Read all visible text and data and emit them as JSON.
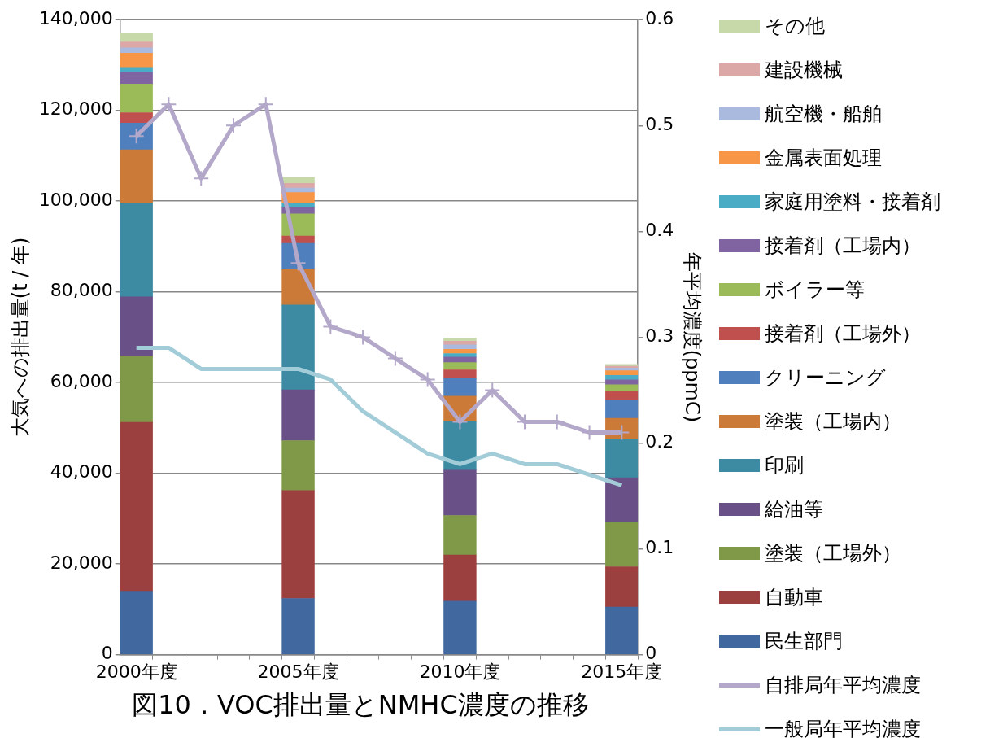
{
  "chart_data": {
    "type": "bar",
    "title": "図10．VOC排出量とNMHC濃度の推移",
    "ylabel": "大気への排出量(t / 年)",
    "y2label": "年平均濃度(ppmC)",
    "categories": [
      "2000年度",
      null,
      null,
      null,
      null,
      "2005年度",
      null,
      null,
      null,
      null,
      "2010年度",
      null,
      null,
      null,
      null,
      "2015年度"
    ],
    "stacked": true,
    "grid": "y",
    "legend": "right",
    "ylim": [
      0,
      140000
    ],
    "yticks": [
      0,
      {
        "value": 20000,
        "label": "20,000"
      },
      {
        "value": 40000,
        "label": "40,000"
      },
      {
        "value": 60000,
        "label": "60,000"
      },
      {
        "value": 80000,
        "label": "80,000"
      },
      {
        "value": 100000,
        "label": "100,000"
      },
      {
        "value": 120000,
        "label": "120,000"
      },
      {
        "value": 140000,
        "label": "140,000"
      }
    ],
    "y2lim": [
      0,
      0.6
    ],
    "y2ticks": [
      0,
      0.1,
      0.2,
      0.3,
      0.4,
      0.5,
      0.6
    ],
    "series": [
      {
        "name": "民生部門",
        "color": "#41699f",
        "values": [
          14000,
          null,
          null,
          null,
          null,
          12400,
          null,
          null,
          null,
          null,
          11800,
          null,
          null,
          null,
          null,
          10500
        ]
      },
      {
        "name": "自動車",
        "color": "#9c403f",
        "values": [
          37200,
          null,
          null,
          null,
          null,
          23800,
          null,
          null,
          null,
          null,
          10200,
          null,
          null,
          null,
          null,
          8900
        ]
      },
      {
        "name": "塗装（工場外）",
        "color": "#7f9948",
        "values": [
          14500,
          null,
          null,
          null,
          null,
          11000,
          null,
          null,
          null,
          null,
          8700,
          null,
          null,
          null,
          null,
          9900
        ]
      },
      {
        "name": "給油等",
        "color": "#695087",
        "values": [
          13200,
          null,
          null,
          null,
          null,
          11200,
          null,
          null,
          null,
          null,
          10000,
          null,
          null,
          null,
          null,
          9700
        ]
      },
      {
        "name": "印刷",
        "color": "#3c8ba3",
        "values": [
          20700,
          null,
          null,
          null,
          null,
          18700,
          null,
          null,
          null,
          null,
          10700,
          null,
          null,
          null,
          null,
          8600
        ]
      },
      {
        "name": "塗装（工場内）",
        "color": "#cc7a37",
        "values": [
          11700,
          null,
          null,
          null,
          null,
          7800,
          null,
          null,
          null,
          null,
          5600,
          null,
          null,
          null,
          null,
          4500
        ]
      },
      {
        "name": "クリーニング",
        "color": "#4f80bd",
        "values": [
          5900,
          null,
          null,
          null,
          null,
          5800,
          null,
          null,
          null,
          null,
          3900,
          null,
          null,
          null,
          null,
          4000
        ]
      },
      {
        "name": "接着剤（工場外）",
        "color": "#c0504d",
        "values": [
          2300,
          null,
          null,
          null,
          null,
          1600,
          null,
          null,
          null,
          null,
          1900,
          null,
          null,
          null,
          null,
          2000
        ]
      },
      {
        "name": "ボイラー等",
        "color": "#9bbb59",
        "values": [
          6300,
          null,
          null,
          null,
          null,
          4900,
          null,
          null,
          null,
          null,
          1600,
          null,
          null,
          null,
          null,
          1400
        ]
      },
      {
        "name": "接着剤（工場内）",
        "color": "#8064a2",
        "values": [
          2500,
          null,
          null,
          null,
          null,
          1500,
          null,
          null,
          null,
          null,
          1200,
          null,
          null,
          null,
          null,
          1100
        ]
      },
      {
        "name": "家庭用塗料・接着剤",
        "color": "#4bacc6",
        "values": [
          1200,
          null,
          null,
          null,
          null,
          900,
          null,
          null,
          null,
          null,
          800,
          null,
          null,
          null,
          null,
          1000
        ]
      },
      {
        "name": "金属表面処理",
        "color": "#f79646",
        "values": [
          3100,
          null,
          null,
          null,
          null,
          2300,
          null,
          null,
          null,
          null,
          900,
          null,
          null,
          null,
          null,
          1000
        ]
      },
      {
        "name": "航空機・船舶",
        "color": "#aabade",
        "values": [
          1200,
          null,
          null,
          null,
          null,
          1000,
          null,
          null,
          null,
          null,
          1000,
          null,
          null,
          null,
          null,
          600
        ]
      },
      {
        "name": "建設機械",
        "color": "#dba8a7",
        "values": [
          1300,
          null,
          null,
          null,
          null,
          1000,
          null,
          null,
          null,
          null,
          800,
          null,
          null,
          null,
          null,
          400
        ]
      },
      {
        "name": "その他",
        "color": "#c7d8a9",
        "values": [
          2000,
          null,
          null,
          null,
          null,
          1300,
          null,
          null,
          null,
          null,
          700,
          null,
          null,
          null,
          null,
          400
        ]
      },
      {
        "name": "自排局年平均濃度",
        "type": "line",
        "axis": "y2",
        "marker": "cross",
        "color": "#b3a8c9",
        "values": [
          0.49,
          0.52,
          0.45,
          0.5,
          0.52,
          0.37,
          0.31,
          0.3,
          0.28,
          0.26,
          0.22,
          0.25,
          0.22,
          0.22,
          0.21,
          0.21
        ]
      },
      {
        "name": "一般局年平均濃度",
        "type": "line",
        "axis": "y2",
        "marker": "none",
        "color": "#a3ccd9",
        "values": [
          0.29,
          0.29,
          0.27,
          0.27,
          0.27,
          0.27,
          0.26,
          0.23,
          0.21,
          0.19,
          0.18,
          0.19,
          0.18,
          0.18,
          0.17,
          0.16
        ]
      }
    ]
  }
}
